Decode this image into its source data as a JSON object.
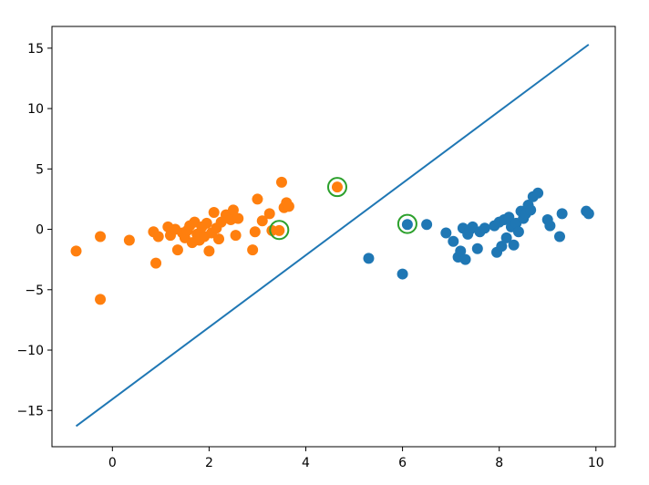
{
  "chart_data": {
    "type": "scatter",
    "xlim": [
      -1.25,
      10.4
    ],
    "ylim": [
      -18.0,
      16.8
    ],
    "x_ticks": [
      0,
      2,
      4,
      6,
      8,
      10
    ],
    "y_ticks": [
      -15,
      -10,
      -5,
      0,
      5,
      10,
      15
    ],
    "x_tick_labels": [
      "0",
      "2",
      "4",
      "6",
      "8",
      "10"
    ],
    "y_tick_labels": [
      "−15",
      "−10",
      "−5",
      "0",
      "5",
      "10",
      "15"
    ],
    "grid": false,
    "colors": {
      "class_0": "#1f77b4",
      "class_1": "#ff7f0e",
      "line": "#1f77b4",
      "support_vector_ring": "#2ca02c",
      "axes": "#000000"
    },
    "series": [
      {
        "class": 0,
        "color": "#1f77b4",
        "x": [
          5.3,
          6.0,
          6.1,
          6.5,
          6.9,
          7.05,
          7.15,
          7.2,
          7.25,
          7.3,
          7.35,
          7.4,
          7.45,
          7.55,
          7.6,
          7.7,
          7.9,
          7.95,
          8.0,
          8.05,
          8.1,
          8.15,
          8.2,
          8.25,
          8.3,
          8.35,
          8.4,
          8.45,
          8.5,
          8.55,
          8.6,
          8.65,
          8.7,
          8.8,
          9.0,
          9.05,
          9.25,
          9.3,
          9.8,
          9.85
        ],
        "y": [
          -2.4,
          -3.7,
          0.4,
          0.4,
          -0.3,
          -1.0,
          -2.3,
          -1.8,
          0.1,
          -2.5,
          -0.4,
          0.0,
          0.2,
          -1.6,
          -0.2,
          0.1,
          0.3,
          -1.9,
          0.6,
          -1.4,
          0.8,
          -0.7,
          1.0,
          0.2,
          -1.3,
          0.5,
          -0.2,
          1.5,
          0.9,
          1.3,
          2.0,
          1.6,
          2.7,
          3.0,
          0.8,
          0.3,
          -0.6,
          1.3,
          1.5,
          1.3
        ]
      },
      {
        "class": 1,
        "color": "#ff7f0e",
        "x": [
          -0.75,
          -0.25,
          -0.25,
          0.35,
          0.85,
          0.9,
          0.95,
          1.15,
          1.2,
          1.3,
          1.35,
          1.45,
          1.5,
          1.55,
          1.6,
          1.65,
          1.7,
          1.75,
          1.8,
          1.85,
          1.9,
          1.95,
          2.0,
          2.05,
          2.1,
          2.15,
          2.2,
          2.25,
          2.35,
          2.45,
          2.5,
          2.55,
          2.6,
          2.9,
          2.95,
          3.0,
          3.1,
          3.25,
          3.3,
          3.45,
          3.5,
          3.55,
          3.6,
          3.65,
          4.65
        ],
        "y": [
          -1.8,
          -0.6,
          -5.8,
          -0.9,
          -0.2,
          -2.8,
          -0.6,
          0.2,
          -0.5,
          0.0,
          -1.7,
          -0.3,
          -0.7,
          -0.1,
          0.3,
          -1.1,
          0.6,
          -0.4,
          -0.9,
          0.2,
          -0.6,
          0.5,
          -1.8,
          -0.3,
          1.4,
          0.1,
          -0.8,
          0.6,
          1.2,
          0.8,
          1.6,
          -0.5,
          0.9,
          -1.7,
          -0.2,
          2.5,
          0.7,
          1.3,
          -0.1,
          -0.1,
          3.9,
          1.8,
          2.2,
          1.9,
          3.5
        ]
      }
    ],
    "decision_line": {
      "x": [
        -0.75,
        9.85
      ],
      "y": [
        -16.3,
        15.3
      ]
    },
    "highlighted_points": [
      {
        "x": 3.45,
        "y": -0.05
      },
      {
        "x": 4.65,
        "y": 3.5
      },
      {
        "x": 6.1,
        "y": 0.45
      }
    ]
  }
}
